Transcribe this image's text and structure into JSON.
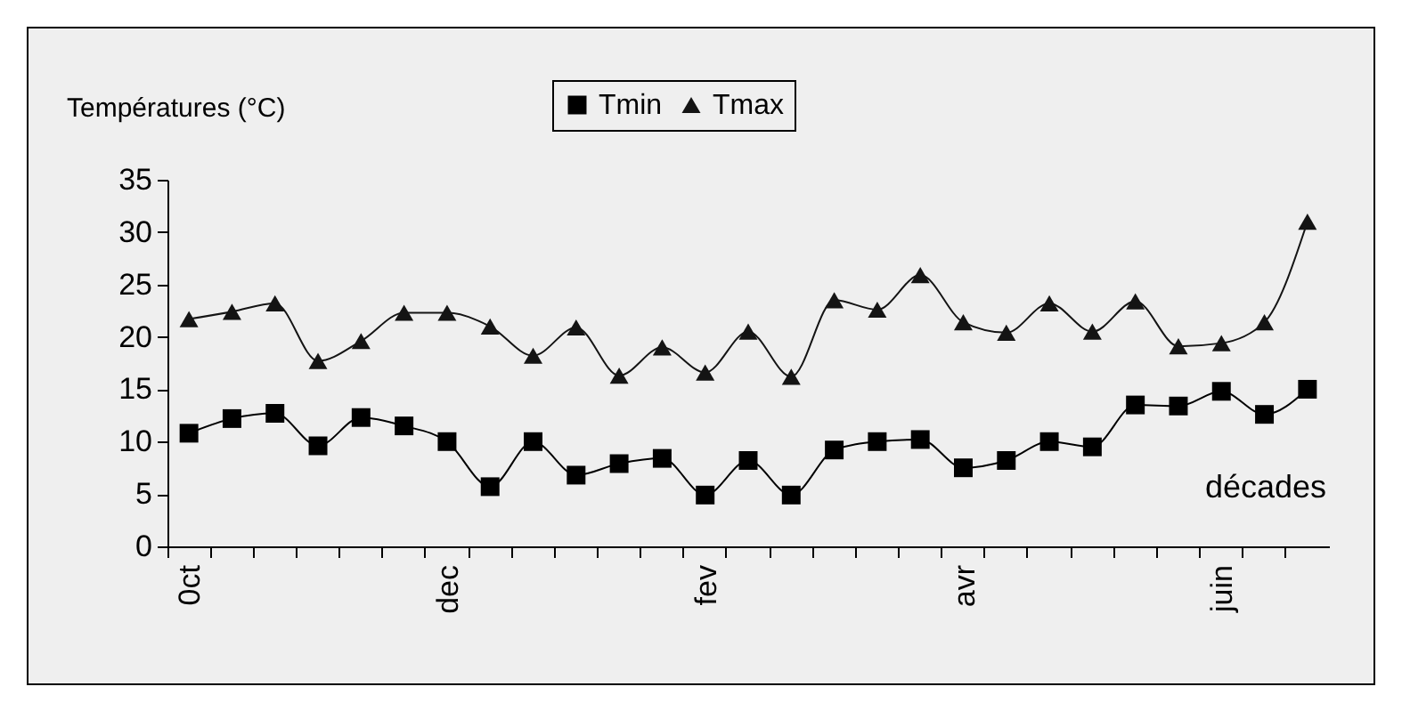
{
  "chart_data": {
    "type": "line",
    "ylabel": "Températures (°C)",
    "xlabel": "décades",
    "categories": [
      "0ct",
      null,
      null,
      null,
      null,
      null,
      "dec",
      null,
      null,
      null,
      null,
      null,
      "fev",
      null,
      null,
      null,
      null,
      null,
      "avr",
      null,
      null,
      null,
      null,
      null,
      "juin",
      null,
      null
    ],
    "series": [
      {
        "name": "Tmin",
        "color": "#000000",
        "marker": "square",
        "values": [
          10.8,
          12.2,
          12.7,
          9.6,
          12.3,
          11.5,
          10,
          5.7,
          10,
          6.8,
          7.9,
          8.4,
          4.9,
          8.2,
          4.9,
          9.2,
          10,
          10.2,
          7.5,
          8.2,
          10,
          9.5,
          13.5,
          13.4,
          14.8,
          12.6,
          15
        ]
      },
      {
        "name": "Tmax",
        "color": "#141414",
        "marker": "triangle",
        "values": [
          21.7,
          22.4,
          23.2,
          17.7,
          19.6,
          22.3,
          22.3,
          21,
          18.2,
          20.9,
          16.3,
          19,
          16.6,
          20.5,
          16.2,
          23.5,
          22.6,
          25.9,
          21.4,
          20.4,
          23.2,
          20.5,
          23.4,
          19.1,
          19.4,
          21.4,
          31
        ]
      }
    ],
    "ylim": [
      0,
      35
    ],
    "yticks": [
      0,
      5,
      10,
      15,
      20,
      25,
      30,
      35
    ],
    "grid": false,
    "legend": "top"
  }
}
